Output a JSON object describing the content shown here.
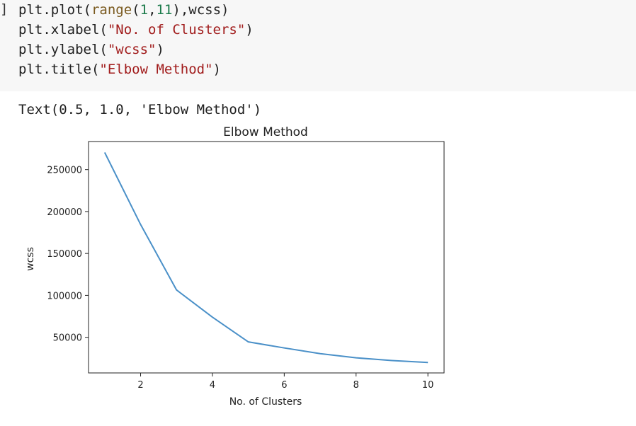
{
  "code_cell": {
    "prompt": "]",
    "lines": [
      [
        {
          "t": "plt.plot("
        },
        {
          "t": "range",
          "c": "builtin"
        },
        {
          "t": "("
        },
        {
          "t": "1",
          "c": "num"
        },
        {
          "t": ","
        },
        {
          "t": "11",
          "c": "num"
        },
        {
          "t": "),wcss)"
        }
      ],
      [
        {
          "t": "plt.xlabel("
        },
        {
          "t": "\"No. of Clusters\"",
          "c": "str"
        },
        {
          "t": ")"
        }
      ],
      [
        {
          "t": "plt.ylabel("
        },
        {
          "t": "\"wcss\"",
          "c": "str"
        },
        {
          "t": ")"
        }
      ],
      [
        {
          "t": "plt.title("
        },
        {
          "t": "\"Elbow Method\"",
          "c": "str"
        },
        {
          "t": ")"
        }
      ]
    ]
  },
  "output": {
    "text": "Text(0.5, 1.0, 'Elbow Method')"
  },
  "colors": {
    "line": "#4a90c8",
    "code_bg": "#f7f7f7"
  },
  "chart_data": {
    "type": "line",
    "title": "Elbow Method",
    "xlabel": "No. of Clusters",
    "ylabel": "wcss",
    "x": [
      1,
      2,
      3,
      4,
      5,
      6,
      7,
      8,
      9,
      10
    ],
    "series": [
      {
        "values": [
          270500,
          184500,
          106500,
          74000,
          44500,
          37300,
          30500,
          25500,
          22300,
          20000
        ]
      }
    ],
    "xlim": [
      0.55,
      10.45
    ],
    "ylim": [
      7500,
      283500
    ],
    "xticks": [
      2,
      4,
      6,
      8,
      10
    ],
    "yticks": [
      50000,
      100000,
      150000,
      200000,
      250000
    ],
    "grid": false
  }
}
